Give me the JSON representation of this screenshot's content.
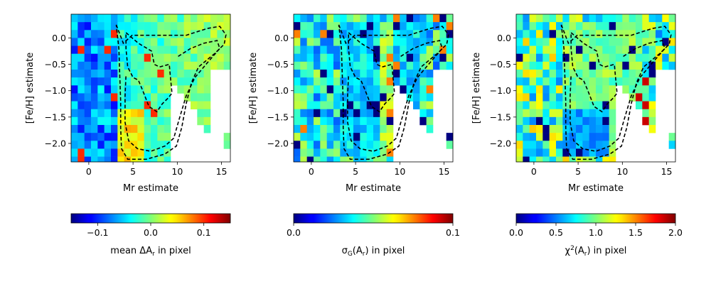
{
  "colors": {
    "colormap": "jet",
    "contour": "#000000",
    "background": "#ffffff"
  },
  "chart_data": [
    {
      "type": "heatmap",
      "title": "",
      "xlabel": "Mr estimate",
      "ylabel": "[Fe/H] estimate",
      "xlim": [
        -2,
        16
      ],
      "ylim": [
        -2.35,
        0.45
      ],
      "x_ticks": [
        {
          "value": 0,
          "label": "0"
        },
        {
          "value": 5,
          "label": "5"
        },
        {
          "value": 10,
          "label": "10"
        },
        {
          "value": 15,
          "label": "15"
        }
      ],
      "y_ticks": [
        {
          "value": 0.0,
          "label": "0.0"
        },
        {
          "value": -0.5,
          "label": "−0.5"
        },
        {
          "value": -1.0,
          "label": "−1.0"
        },
        {
          "value": -1.5,
          "label": "−1.5"
        },
        {
          "value": -2.0,
          "label": "−2.0"
        }
      ],
      "bin_size": {
        "x": 0.75,
        "y": 0.15
      },
      "colorbar": {
        "range": [
          -0.15,
          0.15
        ],
        "label": "mean ΔAr in pixel",
        "ticks": [
          {
            "value": -0.1,
            "label": "−0.1"
          },
          {
            "value": 0.0,
            "label": "0.0"
          },
          {
            "value": 0.1,
            "label": "0.1"
          }
        ]
      },
      "field": "mean"
    },
    {
      "type": "heatmap",
      "title": "",
      "xlabel": "Mr estimate",
      "ylabel": "[Fe/H] estimate",
      "xlim": [
        -2,
        16
      ],
      "ylim": [
        -2.35,
        0.45
      ],
      "x_ticks": [
        {
          "value": 0,
          "label": "0"
        },
        {
          "value": 5,
          "label": "5"
        },
        {
          "value": 10,
          "label": "10"
        },
        {
          "value": 15,
          "label": "15"
        }
      ],
      "y_ticks": [
        {
          "value": 0.0,
          "label": "0.0"
        },
        {
          "value": -0.5,
          "label": "−0.5"
        },
        {
          "value": -1.0,
          "label": "−1.0"
        },
        {
          "value": -1.5,
          "label": "−1.5"
        },
        {
          "value": -2.0,
          "label": "−2.0"
        }
      ],
      "bin_size": {
        "x": 0.75,
        "y": 0.15
      },
      "colorbar": {
        "range": [
          0.0,
          0.1
        ],
        "label": "σG(Ar) in pixel",
        "ticks": [
          {
            "value": 0.0,
            "label": "0.0"
          },
          {
            "value": 0.1,
            "label": "0.1"
          }
        ]
      },
      "field": "sigma"
    },
    {
      "type": "heatmap",
      "title": "",
      "xlabel": "Mr estimate",
      "ylabel": "[Fe/H] estimate",
      "xlim": [
        -2,
        16
      ],
      "ylim": [
        -2.35,
        0.45
      ],
      "x_ticks": [
        {
          "value": 0,
          "label": "0"
        },
        {
          "value": 5,
          "label": "5"
        },
        {
          "value": 10,
          "label": "10"
        },
        {
          "value": 15,
          "label": "15"
        }
      ],
      "y_ticks": [
        {
          "value": 0.0,
          "label": "0.0"
        },
        {
          "value": -0.5,
          "label": "−0.5"
        },
        {
          "value": -1.0,
          "label": "−1.0"
        },
        {
          "value": -1.5,
          "label": "−1.5"
        },
        {
          "value": -2.0,
          "label": "−2.0"
        }
      ],
      "bin_size": {
        "x": 0.75,
        "y": 0.15
      },
      "colorbar": {
        "range": [
          0.0,
          2.0
        ],
        "label": "χ2(Ar) in pixel",
        "ticks": [
          {
            "value": 0.0,
            "label": "0.0"
          },
          {
            "value": 0.5,
            "label": "0.5"
          },
          {
            "value": 1.0,
            "label": "1.0"
          },
          {
            "value": 1.5,
            "label": "1.5"
          },
          {
            "value": 2.0,
            "label": "2.0"
          }
        ]
      },
      "field": "chi2"
    }
  ],
  "contours": [
    {
      "name": "outer",
      "points": [
        [
          3.1,
          0.25
        ],
        [
          3.9,
          -0.1
        ],
        [
          4.9,
          0.05
        ],
        [
          6.5,
          0.05
        ],
        [
          8.8,
          0.05
        ],
        [
          11.0,
          0.05
        ],
        [
          13.4,
          0.18
        ],
        [
          14.8,
          0.22
        ],
        [
          15.5,
          0.06
        ],
        [
          15.3,
          -0.12
        ],
        [
          14.2,
          -0.3
        ],
        [
          12.4,
          -0.55
        ],
        [
          11.6,
          -0.85
        ],
        [
          11.0,
          -1.25
        ],
        [
          10.5,
          -1.7
        ],
        [
          9.9,
          -2.05
        ],
        [
          8.6,
          -2.2
        ],
        [
          6.5,
          -2.3
        ],
        [
          4.4,
          -2.3
        ],
        [
          3.7,
          -2.1
        ],
        [
          3.6,
          -1.7
        ],
        [
          3.6,
          -1.2
        ],
        [
          3.5,
          -0.7
        ],
        [
          3.4,
          -0.2
        ],
        [
          3.1,
          0.25
        ]
      ]
    },
    {
      "name": "inner",
      "points": [
        [
          4.2,
          0.1
        ],
        [
          5.6,
          -0.1
        ],
        [
          7.1,
          -0.25
        ],
        [
          7.4,
          -0.5
        ],
        [
          8.0,
          -0.55
        ],
        [
          9.1,
          -0.5
        ],
        [
          9.2,
          -0.7
        ],
        [
          9.4,
          -1.05
        ],
        [
          8.9,
          -1.15
        ],
        [
          8.3,
          -1.25
        ],
        [
          7.7,
          -1.4
        ],
        [
          6.8,
          -1.3
        ],
        [
          6.1,
          -1.0
        ],
        [
          5.6,
          -0.8
        ],
        [
          5.0,
          -0.75
        ],
        [
          4.4,
          -0.55
        ],
        [
          4.2,
          -0.2
        ],
        [
          4.2,
          0.1
        ]
      ]
    },
    {
      "name": "mid",
      "points": [
        [
          10.1,
          -0.35
        ],
        [
          11.5,
          -0.2
        ],
        [
          13.0,
          -0.1
        ],
        [
          14.5,
          -0.05
        ],
        [
          14.8,
          -0.2
        ],
        [
          13.5,
          -0.45
        ],
        [
          12.0,
          -0.75
        ],
        [
          11.0,
          -1.1
        ],
        [
          10.2,
          -1.55
        ],
        [
          9.6,
          -1.9
        ],
        [
          8.6,
          -2.05
        ],
        [
          7.0,
          -2.15
        ],
        [
          5.5,
          -2.1
        ],
        [
          4.5,
          -1.95
        ],
        [
          4.1,
          -1.6
        ],
        [
          4.1,
          -1.1
        ],
        [
          4.2,
          -0.7
        ]
      ]
    }
  ]
}
